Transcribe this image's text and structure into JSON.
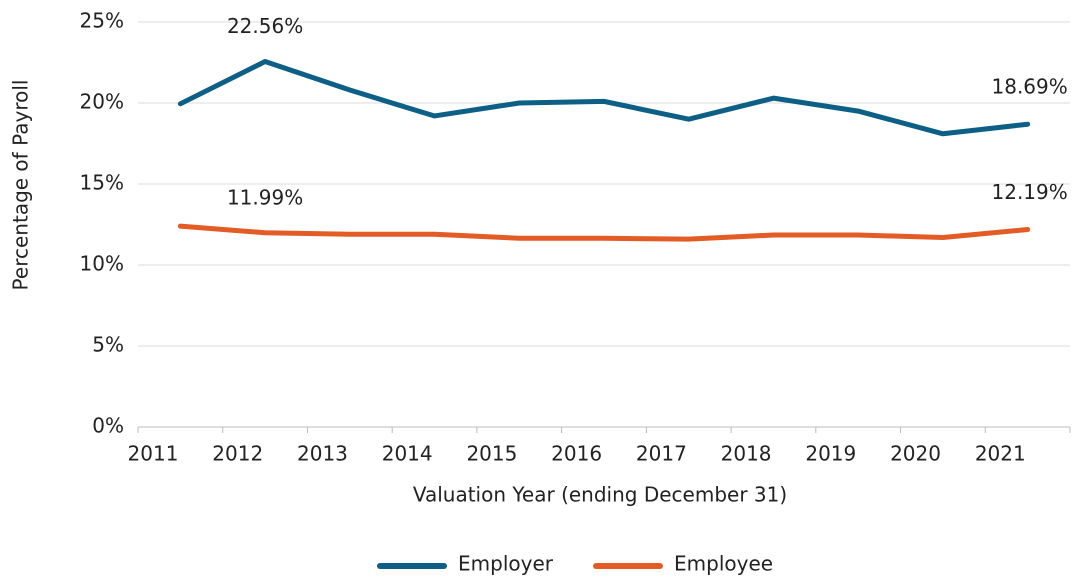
{
  "chart_data": {
    "type": "line",
    "x_label": "Valuation Year (ending December 31)",
    "y_label": "Percentage of Payroll",
    "categories": [
      "2011",
      "2012",
      "2013",
      "2014",
      "2015",
      "2016",
      "2017",
      "2018",
      "2019",
      "2020",
      "2021"
    ],
    "series": [
      {
        "name": "Employer",
        "color": "#0d5f85",
        "values": [
          19.95,
          22.56,
          20.8,
          19.2,
          20.0,
          20.1,
          19.0,
          20.3,
          19.5,
          18.1,
          18.69
        ],
        "value_labels": [
          null,
          "22.56%",
          null,
          null,
          null,
          null,
          null,
          null,
          null,
          null,
          "18.69%"
        ]
      },
      {
        "name": "Employee",
        "color": "#e35b25",
        "values": [
          12.4,
          11.99,
          11.9,
          11.9,
          11.65,
          11.65,
          11.6,
          11.85,
          11.85,
          11.7,
          12.19
        ],
        "value_labels": [
          null,
          "11.99%",
          null,
          null,
          null,
          null,
          null,
          null,
          null,
          null,
          "12.19%"
        ]
      }
    ],
    "ylim": [
      0,
      25
    ],
    "yticks": [
      {
        "value": 0,
        "label": "0%"
      },
      {
        "value": 5,
        "label": "5%"
      },
      {
        "value": 10,
        "label": "10%"
      },
      {
        "value": 15,
        "label": "15%"
      },
      {
        "value": 20,
        "label": "20%"
      },
      {
        "value": 25,
        "label": "25%"
      }
    ],
    "grid": true,
    "legend": "bottom"
  }
}
